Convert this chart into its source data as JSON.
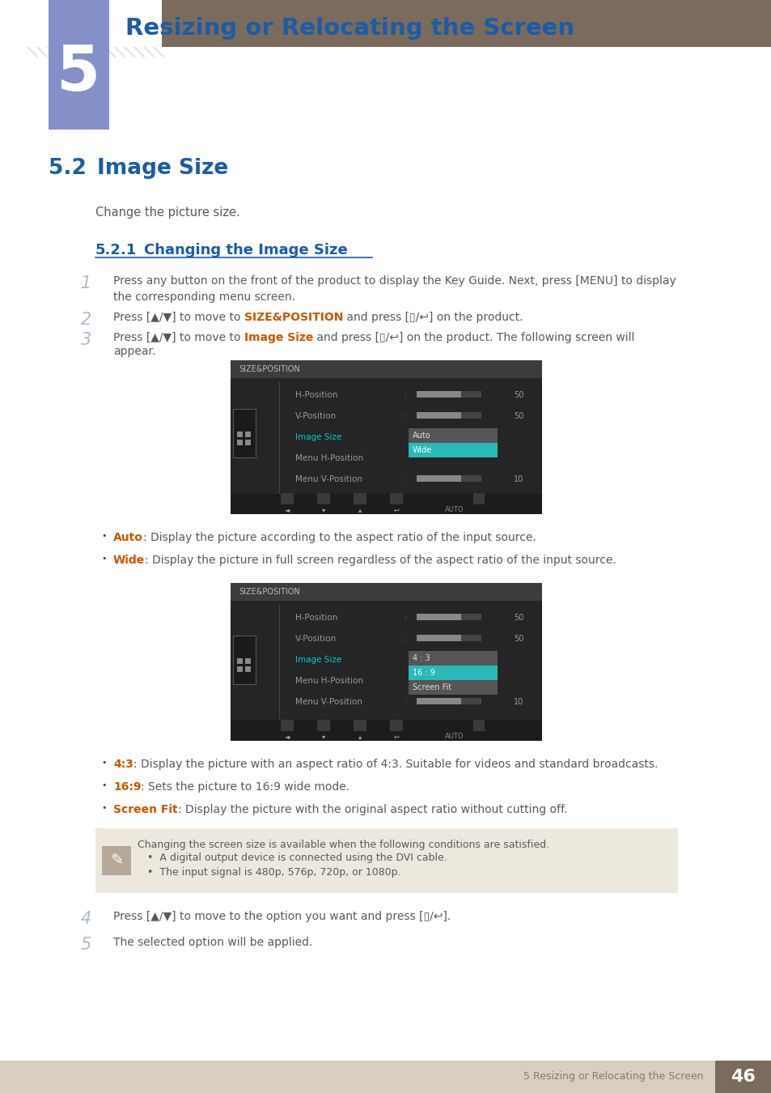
{
  "page_bg": "#ffffff",
  "header_bg": "#7a6b5c",
  "chapter_box_bg": "#8590c8",
  "chapter_number": "5",
  "chapter_title": "Resizing or Relocating the Screen",
  "section_number": "5.2",
  "section_title": "Image Size",
  "section_desc": "Change the picture size.",
  "subsection_number": "5.2.1",
  "subsection_title": "Changing the Image Size",
  "color_blue_dark": "#1a5ca8",
  "color_orange": "#cc5500",
  "color_step_num": "#aabbd0",
  "color_gray_text": "#595959",
  "footer_bg": "#d8cfc0",
  "footer_num_bg": "#7a6b5c",
  "footer_text": "5 Resizing or Relocating the Screen",
  "footer_page": "46",
  "note_text1": "Changing the screen size is available when the following conditions are satisfied.",
  "note_bullet1": "A digital output device is connected using the DVI cable.",
  "note_bullet2": "The input signal is 480p, 576p, 720p, or 1080p."
}
